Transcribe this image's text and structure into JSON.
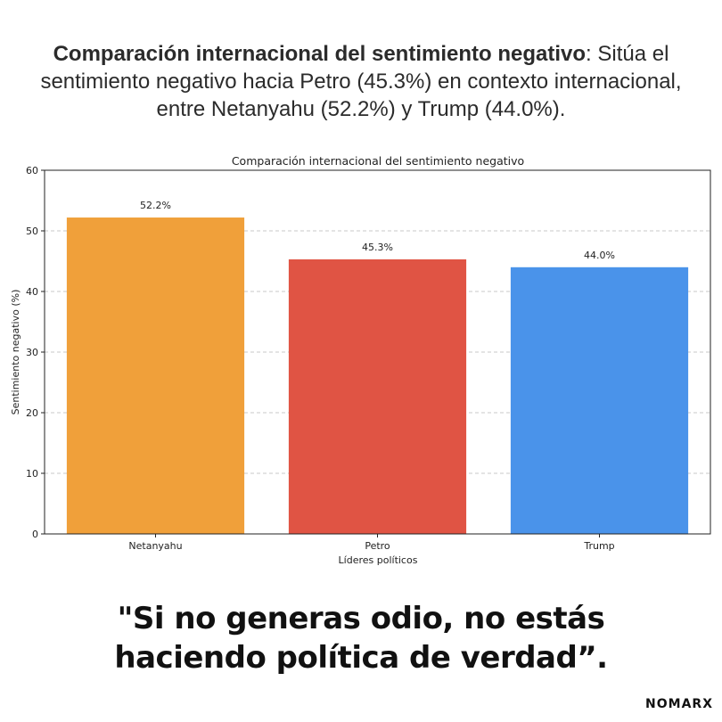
{
  "header": {
    "bold_text": "Comparación internacional del sentimiento negativo",
    "rest_text": ": Sitúa el sentimiento negativo hacia Petro (45.3%) en contexto internacional, entre Netanyahu (52.2%) y Trump (44.0%)."
  },
  "chart_data": {
    "type": "bar",
    "title": "Comparación internacional del sentimiento negativo",
    "xlabel": "Líderes políticos",
    "ylabel": "Sentimiento negativo (%)",
    "categories": [
      "Netanyahu",
      "Petro",
      "Trump"
    ],
    "values": [
      52.2,
      45.3,
      44.0
    ],
    "value_labels": [
      "52.2%",
      "45.3%",
      "44.0%"
    ],
    "colors": [
      "#f0a03a",
      "#e05444",
      "#4a93ea"
    ],
    "ylim": [
      0,
      60
    ],
    "yticks": [
      0,
      10,
      20,
      30,
      40,
      50,
      60
    ],
    "grid": true
  },
  "quote": {
    "text": "\"Si no generas odio, no estás haciendo política de verdad”."
  },
  "brand": {
    "name": "NOMARX"
  }
}
